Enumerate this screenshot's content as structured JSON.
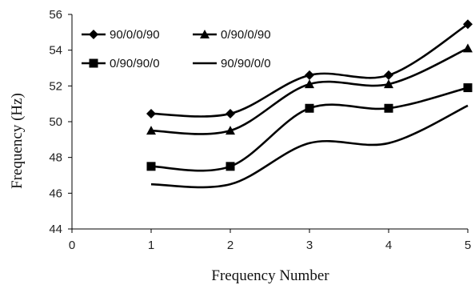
{
  "chart_data": {
    "type": "line",
    "xlabel": "Frequency Number",
    "ylabel": "Frequency (Hz)",
    "xlim": [
      0,
      5
    ],
    "ylim": [
      44,
      56
    ],
    "xticks": [
      "0",
      "1",
      "2",
      "3",
      "4",
      "5"
    ],
    "yticks": [
      "44",
      "46",
      "48",
      "50",
      "52",
      "54",
      "56"
    ],
    "grid": false,
    "smooth": true,
    "legend_position": "top-left",
    "x": [
      1,
      2,
      3,
      4,
      5
    ],
    "series": [
      {
        "name": "90/0/0/90",
        "values": [
          50.45,
          50.45,
          52.6,
          52.6,
          55.45
        ],
        "marker": "diamond"
      },
      {
        "name": "0/90/0/90",
        "values": [
          49.5,
          49.5,
          52.1,
          52.1,
          54.1
        ],
        "marker": "triangle"
      },
      {
        "name": "0/90/90/0",
        "values": [
          47.5,
          47.5,
          50.75,
          50.75,
          51.9
        ],
        "marker": "square"
      },
      {
        "name": "90/90/0/0",
        "values": [
          46.5,
          46.5,
          48.8,
          48.8,
          50.9
        ],
        "marker": "none"
      }
    ],
    "colors": {
      "line": "#000000",
      "axis": "#000000"
    }
  }
}
